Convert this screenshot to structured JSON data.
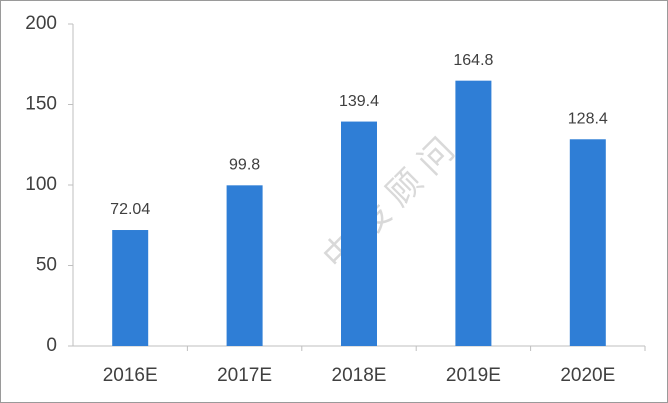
{
  "chart_data": {
    "type": "bar",
    "categories": [
      "2016E",
      "2017E",
      "2018E",
      "2019E",
      "2020E"
    ],
    "values": [
      72.04,
      99.8,
      139.4,
      164.8,
      128.4
    ],
    "color": "#2f7ed6",
    "ylim": [
      0,
      200
    ],
    "yticks": [
      0,
      50,
      100,
      150,
      200
    ],
    "grid": false,
    "watermark": "中 投 顾 问"
  }
}
